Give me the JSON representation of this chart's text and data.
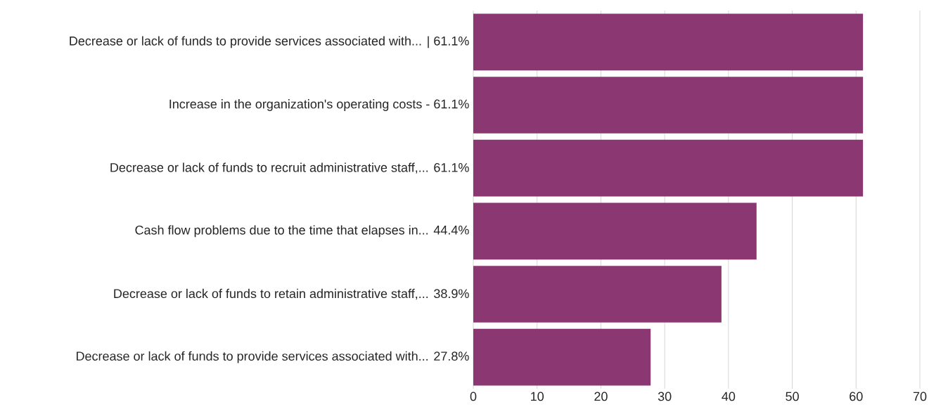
{
  "chart_data": {
    "type": "bar",
    "orientation": "horizontal",
    "categories": [
      "Decrease or lack of funds to provide services associated with... | 61.1%",
      "Increase in the organization's operating costs - 61.1%",
      "Decrease or lack of funds to recruit administrative staff,... 61.1%",
      "Cash flow problems due to the time that elapses in... 44.4%",
      "Decrease or lack of funds to retain administrative staff,... 38.9%",
      "Decrease or lack of funds to provide services associated with... 27.8%"
    ],
    "values": [
      61.1,
      61.1,
      61.1,
      44.4,
      38.9,
      27.8
    ],
    "color": "#8b3772",
    "xlim": [
      0,
      70
    ],
    "xticks": [
      0,
      10,
      20,
      30,
      40,
      50,
      60,
      70
    ],
    "grid": "x"
  }
}
